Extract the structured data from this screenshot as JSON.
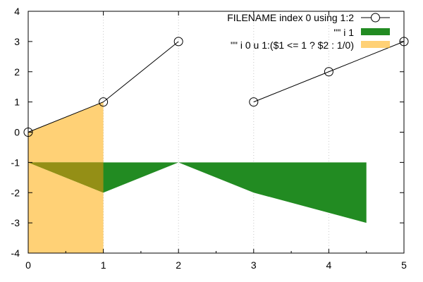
{
  "chart_data": {
    "type": "line",
    "x_ticks": [
      0,
      1,
      2,
      3,
      4,
      5
    ],
    "y_ticks": [
      -4,
      -3,
      -2,
      -1,
      0,
      1,
      2,
      3,
      4
    ],
    "xlim": [
      0,
      5
    ],
    "ylim": [
      -4,
      4
    ],
    "grid": "vertical dotted",
    "legend_position": "top-right",
    "series": [
      {
        "name": "FILENAME index 0 using 1:2",
        "style": "linespoints",
        "marker": "open-circle",
        "color": "#000000",
        "segments": [
          [
            [
              0,
              0
            ],
            [
              1,
              1
            ],
            [
              2,
              3
            ]
          ],
          [
            [
              3,
              1
            ],
            [
              4,
              2
            ],
            [
              5,
              3
            ]
          ]
        ]
      },
      {
        "name": "\"\" i 1",
        "style": "filledcurves",
        "color": "#228b22",
        "baseline": -1,
        "points": [
          [
            0,
            -1
          ],
          [
            1,
            -2
          ],
          [
            2,
            -1
          ],
          [
            3,
            -2
          ],
          [
            4.5,
            -3
          ]
        ]
      },
      {
        "name": "\"\" i 0 u 1:($1 <= 1 ? $2 : 1/0)",
        "style": "filledcurves below",
        "color": "#ffb31a",
        "opacity": 0.6,
        "points": [
          [
            0,
            0
          ],
          [
            1,
            1
          ]
        ]
      }
    ]
  }
}
